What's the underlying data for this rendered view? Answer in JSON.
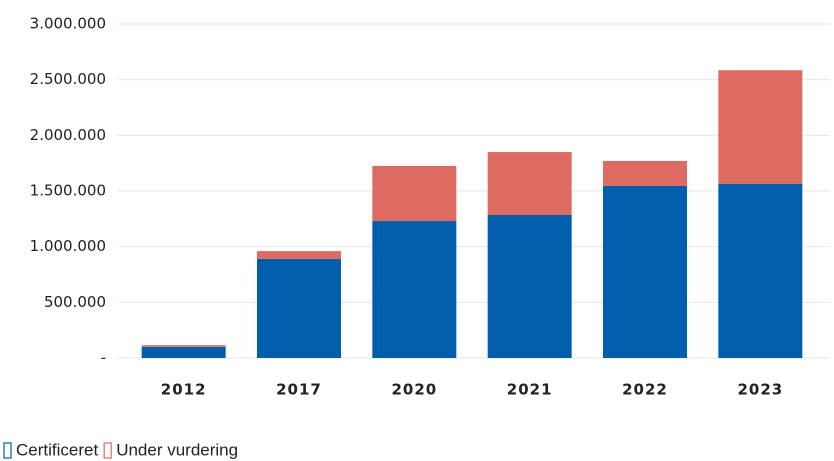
{
  "chart_data": {
    "type": "stacked_bar",
    "categories": [
      "2012",
      "2017",
      "2020",
      "2021",
      "2022",
      "2023"
    ],
    "series": [
      {
        "name": "Certificeret",
        "color": "#005eac",
        "values": [
          100000,
          890000,
          1230000,
          1285000,
          1545000,
          1565000
        ]
      },
      {
        "name": "Under vurdering",
        "color": "#dd6b61",
        "values": [
          15000,
          70000,
          495000,
          565000,
          225000,
          1020000
        ]
      }
    ],
    "ylim": [
      0,
      3000000
    ],
    "yticks": [
      {
        "value": 0,
        "label": "-"
      },
      {
        "value": 500000,
        "label": "500.000"
      },
      {
        "value": 1000000,
        "label": "1.000.000"
      },
      {
        "value": 1500000,
        "label": "1.500.000"
      },
      {
        "value": 2000000,
        "label": "2.000.000"
      },
      {
        "value": 2500000,
        "label": "2.500.000"
      },
      {
        "value": 3000000,
        "label": "3.000.000"
      }
    ],
    "grid": true,
    "legend": "bottom-left"
  }
}
